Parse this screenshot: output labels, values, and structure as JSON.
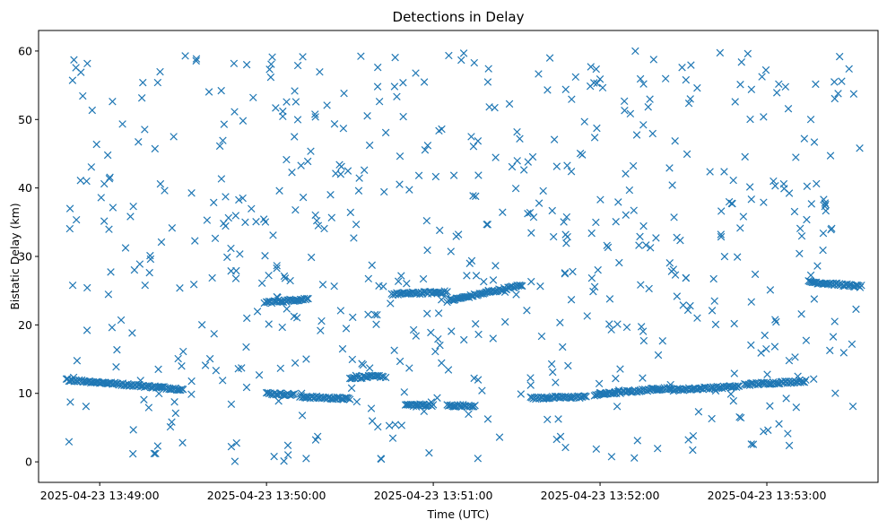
{
  "chart_data": {
    "type": "scatter",
    "title": "Detections in Delay",
    "xlabel": "Time (UTC)",
    "ylabel": "Bistatic Delay (km)",
    "xlim": [
      "2025-04-23 13:48:38",
      "2025-04-23 13:53:40"
    ],
    "ylim": [
      -3,
      63
    ],
    "x_ticks": [
      "2025-04-23 13:49:00",
      "2025-04-23 13:50:00",
      "2025-04-23 13:51:00",
      "2025-04-23 13:52:00",
      "2025-04-23 13:53:00"
    ],
    "y_ticks": [
      0,
      10,
      20,
      30,
      40,
      50,
      60
    ],
    "grid": false,
    "legend": "none",
    "marker": "x",
    "color": "#1f77b4",
    "time_range": [
      "2025-04-23 13:48:48",
      "2025-04-23 13:53:34"
    ],
    "tracks": [
      {
        "start": "13:48:48",
        "end": "13:49:30",
        "delay_start": 12.0,
        "delay_end": 10.6
      },
      {
        "start": "13:50:00",
        "end": "13:50:10",
        "delay_start": 10.0,
        "delay_end": 9.8
      },
      {
        "start": "13:50:12",
        "end": "13:50:30",
        "delay_start": 9.5,
        "delay_end": 9.2
      },
      {
        "start": "13:50:00",
        "end": "13:50:15",
        "delay_start": 23.3,
        "delay_end": 23.8
      },
      {
        "start": "13:50:30",
        "end": "13:50:42",
        "delay_start": 12.3,
        "delay_end": 12.5
      },
      {
        "start": "13:50:45",
        "end": "13:51:05",
        "delay_start": 24.5,
        "delay_end": 24.8
      },
      {
        "start": "13:50:50",
        "end": "13:51:00",
        "delay_start": 8.3,
        "delay_end": 8.3
      },
      {
        "start": "13:51:05",
        "end": "13:51:32",
        "delay_start": 23.5,
        "delay_end": 25.8
      },
      {
        "start": "13:51:05",
        "end": "13:51:15",
        "delay_start": 8.2,
        "delay_end": 8.2
      },
      {
        "start": "13:51:35",
        "end": "13:51:55",
        "delay_start": 9.3,
        "delay_end": 9.5
      },
      {
        "start": "13:51:58",
        "end": "13:52:25",
        "delay_start": 9.8,
        "delay_end": 10.8
      },
      {
        "start": "13:52:25",
        "end": "13:52:50",
        "delay_start": 10.5,
        "delay_end": 11.0
      },
      {
        "start": "13:52:52",
        "end": "13:53:14",
        "delay_start": 11.3,
        "delay_end": 11.8
      },
      {
        "start": "13:53:15",
        "end": "13:53:34",
        "delay_start": 26.3,
        "delay_end": 25.6
      }
    ]
  }
}
